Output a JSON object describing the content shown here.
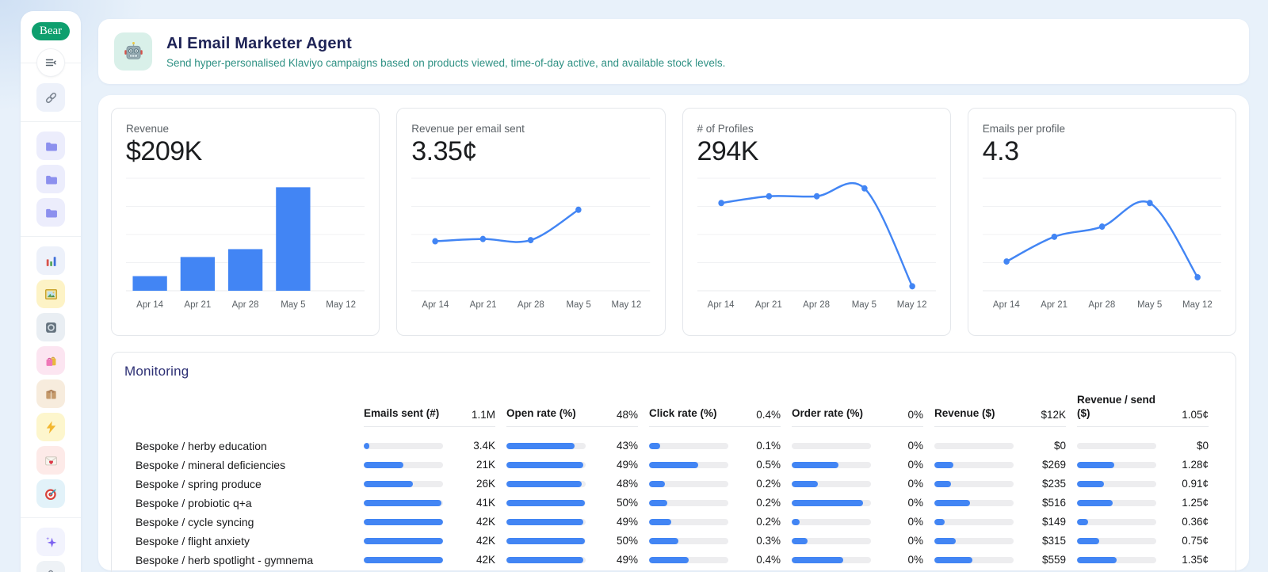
{
  "colors": {
    "accent_blue": "#4285f4",
    "logo_green": "#0e9f6e",
    "page_bg": "#e8f1fa",
    "title_navy": "#1e2356",
    "subtitle_teal": "#2f9184",
    "monitoring_navy": "#2e3175",
    "bar_track_gray": "#ededef"
  },
  "sidebar": {
    "logo_label": "Bear",
    "icons": [
      "collapse-menu",
      "link",
      "folder",
      "folder",
      "folder",
      "bar-chart",
      "picture-frame",
      "gray-badge",
      "shopping-bags",
      "package",
      "lightning",
      "love-letter",
      "target",
      "sparkles",
      "microscope"
    ]
  },
  "header": {
    "title": "AI Email Marketer Agent",
    "subtitle": "Send hyper-personalised Klaviyo campaigns based on products viewed, time-of-day active, and available stock levels."
  },
  "kpis": [
    {
      "label": "Revenue",
      "value": "$209K",
      "chart": {
        "type": "bar",
        "categories": [
          "Apr 14",
          "Apr 21",
          "Apr 28",
          "May 5",
          "May 12"
        ],
        "values_norm": [
          0.13,
          0.3,
          0.37,
          0.92,
          0
        ],
        "values_est_k_usd": [
          16,
          37,
          45,
          112,
          0
        ]
      }
    },
    {
      "label": "Revenue per email sent",
      "value": "3.35¢",
      "chart": {
        "type": "line",
        "categories": [
          "Apr 14",
          "Apr 21",
          "Apr 28",
          "May 5",
          "May 12"
        ],
        "values_norm": [
          0.44,
          0.46,
          0.45,
          0.72
        ]
      }
    },
    {
      "label": "# of Profiles",
      "value": "294K",
      "chart": {
        "type": "line",
        "categories": [
          "Apr 14",
          "Apr 21",
          "Apr 28",
          "May 5",
          "May 12"
        ],
        "values_norm": [
          0.78,
          0.84,
          0.84,
          0.91,
          0.04
        ]
      }
    },
    {
      "label": "Emails per profile",
      "value": "4.3",
      "chart": {
        "type": "line",
        "categories": [
          "Apr 14",
          "Apr 21",
          "Apr 28",
          "May 5",
          "May 12"
        ],
        "values_norm": [
          0.26,
          0.48,
          0.57,
          0.78,
          0.12
        ]
      }
    }
  ],
  "monitoring": {
    "title": "Monitoring",
    "headers": [
      {
        "label": "Emails sent (#)",
        "total": "1.1M"
      },
      {
        "label": "Open rate (%)",
        "total": "48%"
      },
      {
        "label": "Click rate (%)",
        "total": "0.4%"
      },
      {
        "label": "Order rate (%)",
        "total": "0%"
      },
      {
        "label": "Revenue ($)",
        "total": "$12K"
      },
      {
        "label": "Revenue / send ($)",
        "total": "1.05¢"
      }
    ],
    "rows": [
      {
        "name": "Bespoke / herby education",
        "metrics": [
          {
            "v": "3.4K",
            "f": 0.07
          },
          {
            "v": "43%",
            "f": 0.86
          },
          {
            "v": "0.1%",
            "f": 0.14
          },
          {
            "v": "0%",
            "f": 0
          },
          {
            "v": "$0",
            "f": 0
          },
          {
            "v": "$0",
            "f": 0
          }
        ]
      },
      {
        "name": "Bespoke / mineral deficiencies",
        "metrics": [
          {
            "v": "21K",
            "f": 0.5
          },
          {
            "v": "49%",
            "f": 0.97
          },
          {
            "v": "0.5%",
            "f": 0.62
          },
          {
            "v": "0%",
            "f": 0.59
          },
          {
            "v": "$269",
            "f": 0.24
          },
          {
            "v": "1.28¢",
            "f": 0.47
          }
        ]
      },
      {
        "name": "Bespoke / spring produce",
        "metrics": [
          {
            "v": "26K",
            "f": 0.62
          },
          {
            "v": "48%",
            "f": 0.95
          },
          {
            "v": "0.2%",
            "f": 0.2
          },
          {
            "v": "0%",
            "f": 0.33
          },
          {
            "v": "$235",
            "f": 0.21
          },
          {
            "v": "0.91¢",
            "f": 0.34
          }
        ]
      },
      {
        "name": "Bespoke / probiotic q+a",
        "metrics": [
          {
            "v": "41K",
            "f": 0.98
          },
          {
            "v": "50%",
            "f": 0.99
          },
          {
            "v": "0.2%",
            "f": 0.23
          },
          {
            "v": "0%",
            "f": 0.9
          },
          {
            "v": "$516",
            "f": 0.45
          },
          {
            "v": "1.25¢",
            "f": 0.45
          }
        ]
      },
      {
        "name": "Bespoke / cycle syncing",
        "metrics": [
          {
            "v": "42K",
            "f": 1
          },
          {
            "v": "49%",
            "f": 0.97
          },
          {
            "v": "0.2%",
            "f": 0.28
          },
          {
            "v": "0%",
            "f": 0.1
          },
          {
            "v": "$149",
            "f": 0.13
          },
          {
            "v": "0.36¢",
            "f": 0.14
          }
        ]
      },
      {
        "name": "Bespoke / flight anxiety",
        "metrics": [
          {
            "v": "42K",
            "f": 1
          },
          {
            "v": "50%",
            "f": 0.99
          },
          {
            "v": "0.3%",
            "f": 0.37
          },
          {
            "v": "0%",
            "f": 0.2
          },
          {
            "v": "$315",
            "f": 0.27
          },
          {
            "v": "0.75¢",
            "f": 0.28
          }
        ]
      },
      {
        "name": "Bespoke / herb spotlight - gymnema",
        "metrics": [
          {
            "v": "42K",
            "f": 1
          },
          {
            "v": "49%",
            "f": 0.97
          },
          {
            "v": "0.4%",
            "f": 0.5
          },
          {
            "v": "0%",
            "f": 0.65
          },
          {
            "v": "$559",
            "f": 0.48
          },
          {
            "v": "1.35¢",
            "f": 0.5
          }
        ]
      }
    ]
  }
}
